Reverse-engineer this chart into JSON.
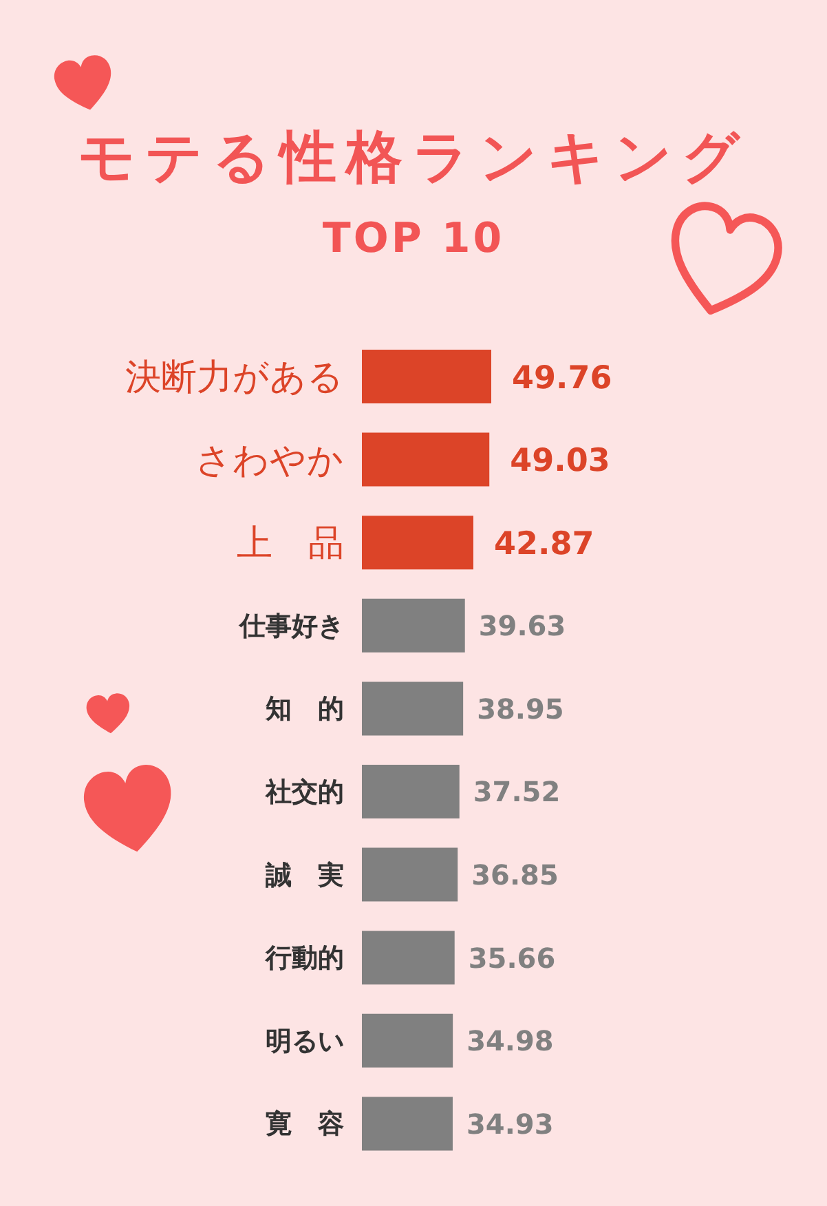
{
  "chart_data": {
    "type": "bar",
    "orientation": "horizontal",
    "title": "モテる性格ランキング",
    "subtitle": "TOP 10",
    "categories": [
      "決断力がある",
      "さわやか",
      "上　品",
      "仕事好き",
      "知　的",
      "社交的",
      "誠　実",
      "行動的",
      "明るい",
      "寛　容"
    ],
    "values": [
      49.76,
      49.03,
      42.87,
      39.63,
      38.95,
      37.52,
      36.85,
      35.66,
      34.98,
      34.93
    ],
    "colors": [
      "#dc4428",
      "#dc4428",
      "#dc4428",
      "#808080",
      "#808080",
      "#808080",
      "#808080",
      "#808080",
      "#808080",
      "#808080"
    ],
    "data_labels": true,
    "tick_labels": "y"
  }
}
